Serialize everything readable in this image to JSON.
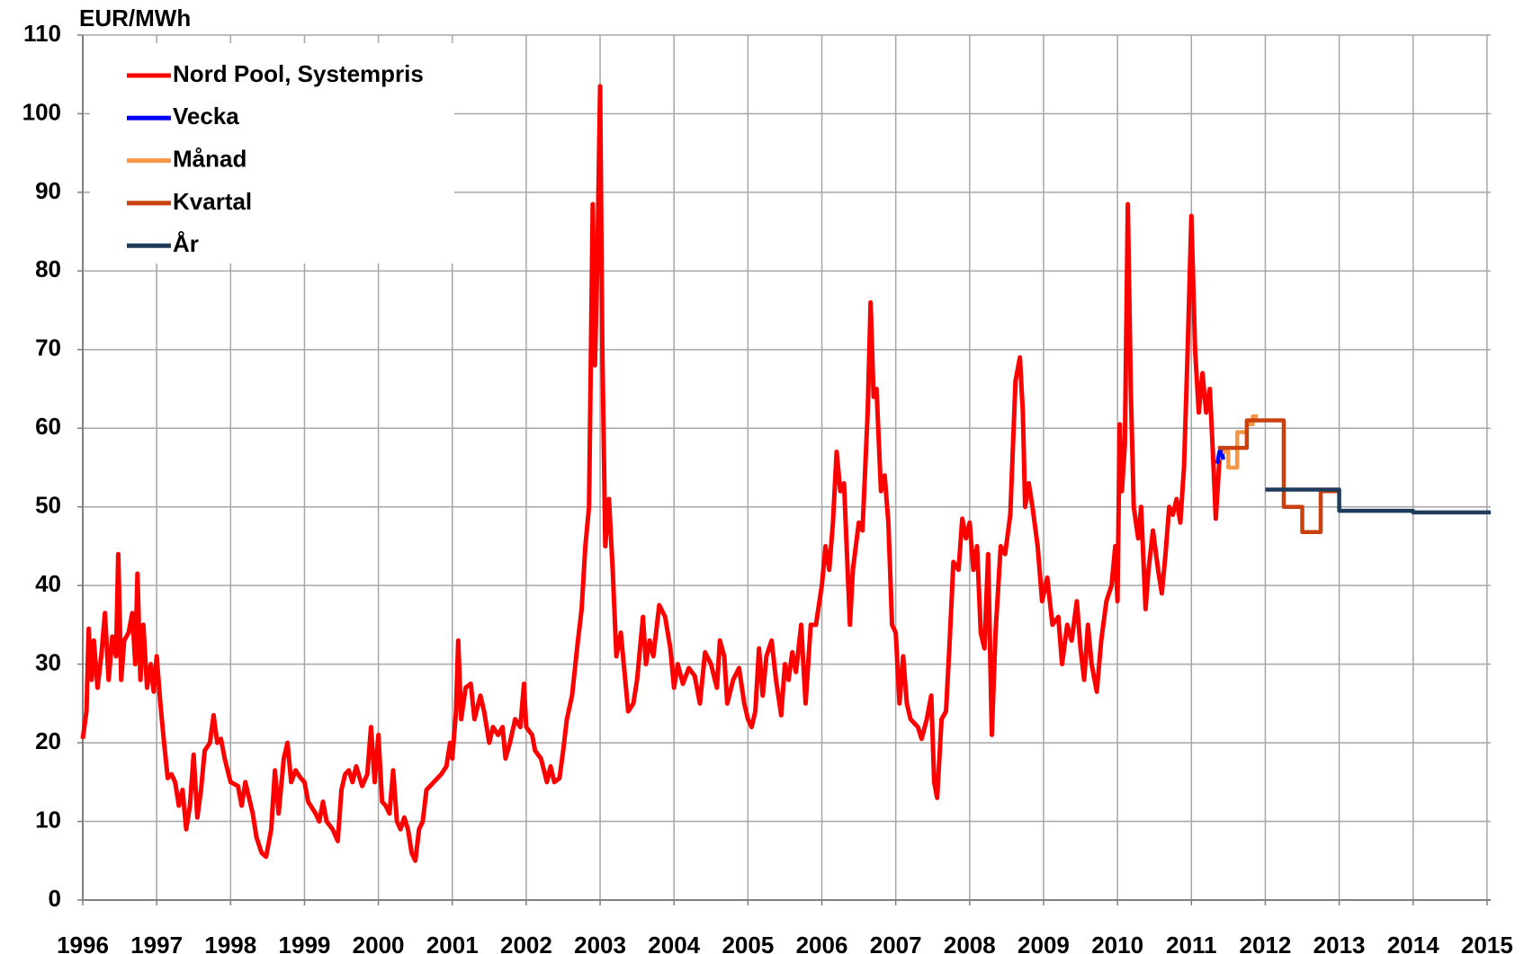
{
  "chart_data": {
    "type": "line",
    "y_axis_label": "EUR/MWh",
    "xlim": [
      1996,
      2015.05
    ],
    "ylim": [
      0,
      110
    ],
    "xticks": [
      1996,
      1997,
      1998,
      1999,
      2000,
      2001,
      2002,
      2003,
      2004,
      2005,
      2006,
      2007,
      2008,
      2009,
      2010,
      2011,
      2012,
      2013,
      2014,
      2015
    ],
    "yticks": [
      0,
      10,
      20,
      30,
      40,
      50,
      60,
      70,
      80,
      90,
      100,
      110
    ],
    "grid": true,
    "legend": "upper left",
    "series": [
      {
        "name": "Nord Pool, Systempris",
        "color": "#ff0000",
        "x": [
          1996.0,
          1996.05,
          1996.08,
          1996.12,
          1996.15,
          1996.2,
          1996.25,
          1996.3,
          1996.35,
          1996.4,
          1996.45,
          1996.48,
          1996.52,
          1996.56,
          1996.62,
          1996.67,
          1996.71,
          1996.74,
          1996.78,
          1996.82,
          1996.87,
          1996.92,
          1996.96,
          1997.0,
          1997.05,
          1997.1,
          1997.15,
          1997.2,
          1997.25,
          1997.3,
          1997.35,
          1997.4,
          1997.45,
          1997.5,
          1997.55,
          1997.6,
          1997.65,
          1997.72,
          1997.77,
          1997.82,
          1997.87,
          1997.92,
          1998.0,
          1998.1,
          1998.15,
          1998.2,
          1998.3,
          1998.35,
          1998.42,
          1998.48,
          1998.55,
          1998.6,
          1998.65,
          1998.72,
          1998.77,
          1998.82,
          1998.88,
          1998.95,
          1999.0,
          1999.05,
          1999.15,
          1999.2,
          1999.25,
          1999.3,
          1999.38,
          1999.45,
          1999.5,
          1999.55,
          1999.6,
          1999.65,
          1999.7,
          1999.78,
          1999.85,
          1999.9,
          1999.95,
          2000.0,
          2000.05,
          2000.1,
          2000.15,
          2000.2,
          2000.25,
          2000.3,
          2000.35,
          2000.4,
          2000.45,
          2000.5,
          2000.55,
          2000.6,
          2000.65,
          2000.75,
          2000.85,
          2000.92,
          2000.97,
          2001.0,
          2001.05,
          2001.08,
          2001.12,
          2001.18,
          2001.25,
          2001.3,
          2001.38,
          2001.43,
          2001.5,
          2001.55,
          2001.62,
          2001.68,
          2001.72,
          2001.78,
          2001.85,
          2001.92,
          2001.97,
          2002.0,
          2002.08,
          2002.12,
          2002.2,
          2002.28,
          2002.33,
          2002.38,
          2002.45,
          2002.5,
          2002.55,
          2002.62,
          2002.7,
          2002.75,
          2002.8,
          2002.85,
          2002.9,
          2002.93,
          2002.96,
          2003.0,
          2003.03,
          2003.07,
          2003.12,
          2003.17,
          2003.22,
          2003.28,
          2003.32,
          2003.38,
          2003.45,
          2003.5,
          2003.58,
          2003.62,
          2003.67,
          2003.72,
          2003.8,
          2003.88,
          2003.95,
          2004.0,
          2004.05,
          2004.12,
          2004.2,
          2004.28,
          2004.35,
          2004.42,
          2004.5,
          2004.58,
          2004.62,
          2004.68,
          2004.72,
          2004.8,
          2004.88,
          2004.95,
          2005.0,
          2005.05,
          2005.1,
          2005.15,
          2005.2,
          2005.25,
          2005.32,
          2005.38,
          2005.45,
          2005.5,
          2005.55,
          2005.6,
          2005.65,
          2005.72,
          2005.78,
          2005.85,
          2005.92,
          2006.0,
          2006.05,
          2006.1,
          2006.15,
          2006.2,
          2006.25,
          2006.3,
          2006.38,
          2006.42,
          2006.5,
          2006.55,
          2006.62,
          2006.66,
          2006.7,
          2006.74,
          2006.8,
          2006.85,
          2006.9,
          2006.95,
          2007.0,
          2007.05,
          2007.1,
          2007.15,
          2007.2,
          2007.3,
          2007.35,
          2007.42,
          2007.48,
          2007.52,
          2007.56,
          2007.62,
          2007.68,
          2007.73,
          2007.78,
          2007.85,
          2007.9,
          2007.95,
          2008.0,
          2008.05,
          2008.1,
          2008.15,
          2008.2,
          2008.25,
          2008.3,
          2008.35,
          2008.42,
          2008.48,
          2008.55,
          2008.62,
          2008.68,
          2008.72,
          2008.75,
          2008.8,
          2008.85,
          2008.92,
          2008.98,
          2009.05,
          2009.12,
          2009.2,
          2009.25,
          2009.32,
          2009.38,
          2009.45,
          2009.5,
          2009.55,
          2009.6,
          2009.65,
          2009.72,
          2009.78,
          2009.85,
          2009.92,
          2009.97,
          2010.0,
          2010.03,
          2010.06,
          2010.1,
          2010.14,
          2010.18,
          2010.22,
          2010.28,
          2010.32,
          2010.38,
          2010.42,
          2010.48,
          2010.55,
          2010.6,
          2010.65,
          2010.7,
          2010.75,
          2010.8,
          2010.85,
          2010.9,
          2010.95,
          2011.0,
          2011.05,
          2011.1,
          2011.15,
          2011.2,
          2011.25,
          2011.3,
          2011.33,
          2011.38
        ],
        "values": [
          20.5,
          24,
          34.5,
          28,
          33,
          27,
          31,
          36.5,
          28,
          33.5,
          31,
          44,
          28,
          33,
          34,
          36.5,
          30,
          41.5,
          28,
          35,
          27,
          30,
          26.5,
          31,
          25,
          20,
          15.5,
          16,
          15,
          12,
          14,
          9,
          12,
          18.5,
          10.5,
          14,
          19,
          20,
          23.5,
          20,
          20.5,
          18,
          15,
          14.5,
          12,
          15,
          11,
          8,
          6,
          5.5,
          9,
          16.5,
          11,
          18,
          20,
          15,
          16.5,
          15.5,
          15,
          12.5,
          11,
          10,
          12.5,
          10,
          9,
          7.5,
          14,
          16,
          16.5,
          15,
          17,
          14.5,
          16,
          22,
          15,
          21,
          12.5,
          12,
          11,
          16.5,
          10,
          9,
          10.5,
          9,
          6,
          5,
          9,
          10,
          14,
          15,
          16,
          17,
          20,
          18,
          24,
          33,
          23,
          27,
          27.5,
          23,
          26,
          24,
          20,
          22,
          21,
          22,
          18,
          20,
          23,
          22,
          27.5,
          22,
          21,
          19,
          18,
          15,
          17,
          15,
          15.5,
          19,
          23,
          26,
          33,
          37,
          45,
          50,
          88.5,
          68,
          80,
          103.5,
          70,
          45,
          51,
          42,
          31,
          34,
          30,
          24,
          25,
          28,
          36,
          30,
          33,
          31,
          37.5,
          36,
          32,
          27,
          30,
          27.5,
          29.5,
          28.5,
          25,
          31.5,
          30,
          27,
          33,
          31,
          25,
          28,
          29.5,
          25,
          23,
          22,
          24,
          32,
          26,
          31,
          33,
          28,
          23.5,
          30,
          28,
          31.5,
          29,
          35,
          25,
          35,
          35,
          40,
          45,
          42,
          48,
          57,
          52,
          53,
          35,
          42,
          48,
          47,
          62,
          76,
          64,
          65,
          52,
          54,
          48,
          35,
          34,
          25,
          31,
          25,
          23,
          22,
          20.5,
          23,
          26,
          15,
          13,
          23,
          24,
          33,
          43,
          42,
          48.5,
          46,
          48,
          42,
          45,
          34,
          32,
          44,
          21,
          34,
          45,
          44,
          49,
          66,
          69,
          62,
          50,
          53,
          50,
          45,
          38,
          41,
          35,
          36,
          30,
          35,
          33,
          38,
          32,
          28,
          35,
          30,
          26.5,
          33,
          38,
          40,
          45,
          38,
          60.5,
          52,
          58,
          88.5,
          65,
          50,
          46,
          50,
          37,
          42,
          47,
          42,
          39,
          44,
          50,
          49,
          51,
          48,
          55,
          70,
          87,
          70,
          62,
          67,
          62,
          65,
          55,
          48.5,
          56
        ]
      },
      {
        "name": "Vecka",
        "color": "#0000ff",
        "x": [
          2011.35,
          2011.38,
          2011.41,
          2011.43
        ],
        "values": [
          55.5,
          57,
          57.5,
          56
        ]
      },
      {
        "name": "Månad",
        "color": "#f79646",
        "x": [
          2011.42,
          2011.5,
          2011.5,
          2011.62,
          2011.62,
          2011.75,
          2011.75,
          2011.83,
          2011.83,
          2011.9
        ],
        "values": [
          57,
          57,
          55,
          55,
          59.5,
          59.5,
          60.5,
          60.5,
          61.5,
          61.5
        ]
      },
      {
        "name": "Kvartal",
        "color": "#c8410e",
        "x": [
          2011.36,
          2011.75,
          2011.75,
          2012.25,
          2012.25,
          2012.5,
          2012.5,
          2012.75,
          2012.75,
          2013.0
        ],
        "values": [
          57.5,
          57.5,
          61,
          61,
          50,
          50,
          46.8,
          46.8,
          52,
          52
        ]
      },
      {
        "name": "År",
        "color": "#1f3c5c",
        "x": [
          2012.0,
          2013.0,
          2013.0,
          2014.0,
          2014.0,
          2015.05
        ],
        "values": [
          52.2,
          52.2,
          49.5,
          49.5,
          49.3,
          49.3
        ]
      }
    ]
  }
}
